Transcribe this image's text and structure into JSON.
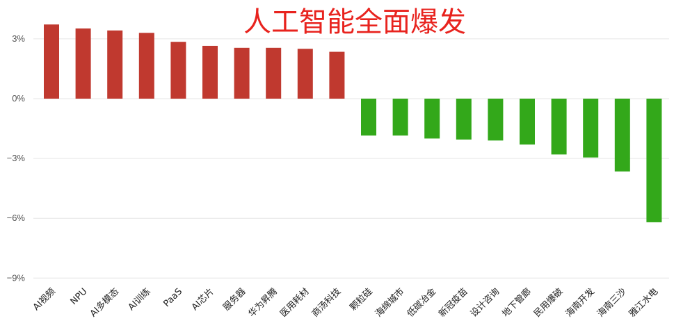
{
  "colors": {
    "positive": "#c0392f",
    "negative": "#33a81a",
    "title": "#e8231e"
  },
  "chart_data": {
    "type": "bar",
    "title": "人工智能全面爆发",
    "xlabel": "",
    "ylabel": "",
    "ylim": [
      -9,
      3.8
    ],
    "yticks": [
      3,
      0,
      -3,
      -6,
      -9
    ],
    "ytick_labels": [
      "3%",
      "0%",
      "−3%",
      "−6%",
      "−9%"
    ],
    "grid": true,
    "categories": [
      "AI视频",
      "NPU",
      "AI多模态",
      "AI训练",
      "PaaS",
      "AI芯片",
      "服务器",
      "华为昇腾",
      "医用耗材",
      "商汤科技",
      "颗粒硅",
      "海绵城市",
      "低碳冶金",
      "新冠疫苗",
      "设计咨询",
      "地下管廊",
      "民用爆破",
      "海南开发",
      "海南三沙",
      "雅江水电"
    ],
    "values": [
      3.72,
      3.52,
      3.42,
      3.3,
      2.85,
      2.65,
      2.55,
      2.55,
      2.5,
      2.35,
      -1.85,
      -1.85,
      -2.0,
      -2.05,
      -2.1,
      -2.3,
      -2.8,
      -2.95,
      -3.65,
      -6.2
    ]
  }
}
